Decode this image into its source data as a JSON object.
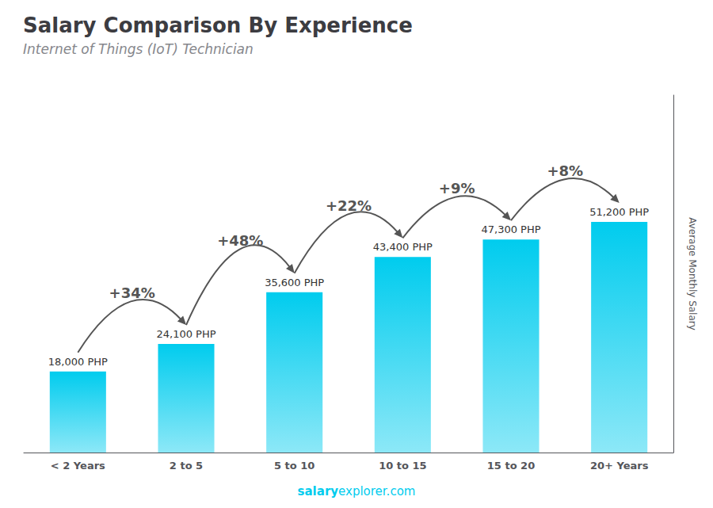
{
  "chart_data": {
    "type": "bar",
    "title": "Salary Comparison By Experience",
    "subtitle": "Internet of Things (IoT) Technician",
    "ylabel": "Average Monthly Salary",
    "categories": [
      "< 2 Years",
      "2 to 5",
      "5 to 10",
      "10 to 15",
      "15 to 20",
      "20+ Years"
    ],
    "values": [
      18000,
      24100,
      35600,
      43400,
      47300,
      51200
    ],
    "value_labels": [
      "18,000 PHP",
      "24,100 PHP",
      "35,600 PHP",
      "43,400 PHP",
      "47,300 PHP",
      "51,200 PHP"
    ],
    "data_labels": true,
    "color": "#00ccee",
    "ylim": [
      0,
      79360
    ],
    "tick_labels": "x",
    "grid": false,
    "annotations": [
      "+34%",
      "+48%",
      "+22%",
      "+9%",
      "+8%"
    ],
    "footer": [
      "salary",
      "explorer.com"
    ]
  }
}
